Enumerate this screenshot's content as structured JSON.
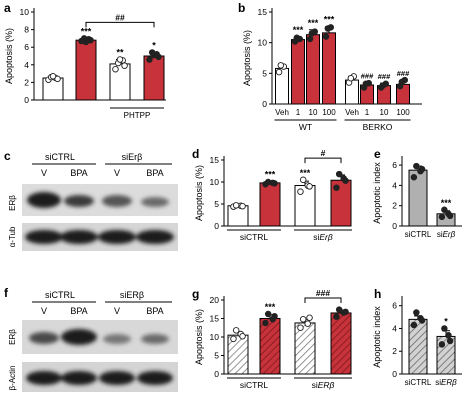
{
  "colors": {
    "red": "#c8323a",
    "white": "#ffffff",
    "gray": "#b0b0b0",
    "dot": "#222222",
    "stroke": "#000000",
    "hatch": "#7a7a7a"
  },
  "blots": {
    "c": {
      "letter": "c",
      "groups": [
        "siCTRL",
        "siErβ"
      ],
      "group_italic_part": "Erβ",
      "lanes": [
        "V",
        "BPA",
        "V",
        "BPA"
      ],
      "rows": [
        "ERβ",
        "α-Tub"
      ]
    },
    "f": {
      "letter": "f",
      "groups": [
        "siCTRL",
        "siERβ"
      ],
      "group_italic_part": "ERβ",
      "lanes": [
        "V",
        "BPA",
        "V",
        "BPA"
      ],
      "rows": [
        "ERβ",
        "β-Actin"
      ]
    }
  },
  "chart_data": [
    {
      "id": "a",
      "letter": "a",
      "type": "bar",
      "ylabel": "Apoptosis (%)",
      "yticks": [
        0,
        2,
        4,
        6,
        8,
        10
      ],
      "ylim": [
        0,
        10
      ],
      "values": [
        2.5,
        6.8,
        4.1,
        5.0
      ],
      "errors": [
        0.15,
        0.15,
        0.5,
        0.4
      ],
      "colors": [
        "white",
        "red",
        "white",
        "red"
      ],
      "points": [
        [
          2.3,
          2.5,
          2.6,
          2.4,
          2.7
        ],
        [
          6.7,
          6.9,
          7.0,
          6.8,
          6.6
        ],
        [
          3.5,
          4.5,
          4.2,
          3.9,
          4.6
        ],
        [
          4.6,
          5.2,
          5.4,
          4.9,
          5.1
        ]
      ],
      "stars": [
        "",
        "***",
        "**",
        "*"
      ],
      "bracket_label": "##",
      "bracket_from": 1,
      "bracket_to": 3,
      "group_label": "PHTPP",
      "group_from": 2,
      "group_to": 3
    },
    {
      "id": "b",
      "letter": "b",
      "type": "bar",
      "ylabel": "Apoptosis (%)",
      "yticks": [
        0,
        5,
        10,
        15
      ],
      "ylim": [
        0,
        15
      ],
      "categories": [
        "Veh",
        "1",
        "10",
        "100",
        "Veh",
        "1",
        "10",
        "100"
      ],
      "values": [
        5.8,
        10.5,
        11.3,
        11.6,
        3.9,
        3.1,
        3.0,
        3.2
      ],
      "errors": [
        0.5,
        0.4,
        0.8,
        1.0,
        0.6,
        0.4,
        0.4,
        0.6
      ],
      "colors": [
        "white",
        "red",
        "red",
        "red",
        "white",
        "red",
        "red",
        "red"
      ],
      "points": [
        [
          5.2,
          6.1,
          6.3
        ],
        [
          10.2,
          10.6,
          10.8
        ],
        [
          10.6,
          11.8,
          11.5
        ],
        [
          11.0,
          12.5,
          12.3
        ],
        [
          3.5,
          4.5,
          4.2
        ],
        [
          2.7,
          3.4,
          3.3
        ],
        [
          2.7,
          3.3,
          3.0
        ],
        [
          2.9,
          3.9,
          3.6
        ]
      ],
      "stars": [
        "",
        "***",
        "***",
        "***",
        "",
        "###",
        "###",
        "###"
      ],
      "groups": [
        {
          "label": "WT",
          "from": 0,
          "to": 3
        },
        {
          "label": "BERKO",
          "from": 4,
          "to": 7
        }
      ]
    },
    {
      "id": "d",
      "letter": "d",
      "type": "bar",
      "ylabel": "Apoptosis (%)",
      "yticks": [
        0,
        5,
        10,
        15
      ],
      "ylim": [
        0,
        15
      ],
      "values": [
        4.6,
        9.8,
        9.2,
        10.4
      ],
      "errors": [
        0.2,
        0.3,
        1.0,
        1.2
      ],
      "colors": [
        "white",
        "red",
        "white",
        "red"
      ],
      "points": [
        [
          4.4,
          4.6,
          4.7,
          4.5
        ],
        [
          9.5,
          9.8,
          10.0,
          9.7
        ],
        [
          7.8,
          9.2,
          10.5,
          9.0
        ],
        [
          8.7,
          10.8,
          11.8,
          10.3
        ]
      ],
      "stars": [
        "",
        "***",
        "***",
        ""
      ],
      "bracket_label": "#",
      "bracket_from": 2,
      "bracket_to": 3,
      "groups": [
        {
          "label": "siCTRL",
          "from": 0,
          "to": 1
        },
        {
          "label": "siErβ",
          "from": 2,
          "to": 3,
          "italic": "Erβ"
        }
      ]
    },
    {
      "id": "e",
      "letter": "e",
      "type": "bar",
      "ylabel": "Apoptotic index",
      "yticks": [
        0,
        2,
        4,
        6
      ],
      "ylim": [
        0,
        6.5
      ],
      "categories": [
        "siCTRL",
        "siErβ"
      ],
      "values": [
        5.5,
        1.2
      ],
      "errors": [
        0.4,
        0.3
      ],
      "colors": [
        "gray",
        "gray"
      ],
      "points": [
        [
          4.8,
          5.4,
          5.9,
          5.6
        ],
        [
          0.9,
          1.2,
          1.6,
          1.0
        ]
      ],
      "stars": [
        "",
        "***"
      ]
    },
    {
      "id": "g",
      "letter": "g",
      "type": "bar",
      "ylabel": "Apoptosis (%)",
      "yticks": [
        0,
        5,
        10,
        15,
        20
      ],
      "ylim": [
        0,
        20
      ],
      "values": [
        10.5,
        15.0,
        13.8,
        16.5
      ],
      "errors": [
        0.8,
        1.0,
        1.0,
        0.8
      ],
      "colors": [
        "hatch_white",
        "hatch_red",
        "hatch_white",
        "hatch_red"
      ],
      "points": [
        [
          9.5,
          10.8,
          11.8,
          10.2
        ],
        [
          13.8,
          14.8,
          16.2,
          15.6
        ],
        [
          12.5,
          13.6,
          14.8,
          15.2
        ],
        [
          15.5,
          16.6,
          17.4,
          16.8
        ]
      ],
      "stars": [
        "",
        "***",
        "",
        ""
      ],
      "bracket_label": "###",
      "bracket_from": 2,
      "bracket_to": 3,
      "groups": [
        {
          "label": "siCTRL",
          "from": 0,
          "to": 1
        },
        {
          "label": "siERβ",
          "from": 2,
          "to": 3,
          "italic": "ERβ"
        }
      ]
    },
    {
      "id": "h",
      "letter": "h",
      "type": "bar",
      "ylabel": "Apoptotic index",
      "yticks": [
        0,
        2,
        4,
        6
      ],
      "ylim": [
        0,
        6.5
      ],
      "categories": [
        "siCTRL",
        "siERβ"
      ],
      "values": [
        4.8,
        3.3
      ],
      "errors": [
        0.3,
        0.5
      ],
      "colors": [
        "hatch_gray",
        "hatch_gray"
      ],
      "points": [
        [
          4.3,
          4.9,
          5.4,
          4.7
        ],
        [
          2.6,
          3.4,
          4.0,
          2.9
        ]
      ],
      "stars": [
        "",
        "*"
      ]
    }
  ]
}
